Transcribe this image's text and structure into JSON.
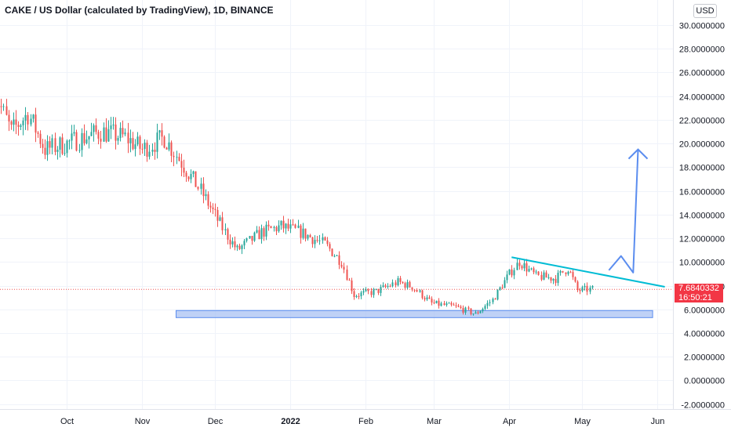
{
  "header": {
    "title": "CAKE / US Dollar (calculated by TradingView), 1D, BINANCE"
  },
  "currency_button": "USD",
  "last_price": {
    "value": "7.6840332",
    "countdown": "16:50:21"
  },
  "colors": {
    "up": "#26a69a",
    "down": "#ef5350",
    "trendline": "#00bcd4",
    "arrow": "#5b8def",
    "zone_fill": "#a9c2f3",
    "zone_border": "#5b8def",
    "price_tag": "#f23645"
  },
  "chart_data": {
    "type": "candlestick",
    "title": "CAKE / US Dollar (calculated by TradingView), 1D, BINANCE",
    "ylim": [
      -2.5,
      30.7
    ],
    "yticks": [
      "30.0000000",
      "28.0000000",
      "26.0000000",
      "24.0000000",
      "22.0000000",
      "20.0000000",
      "18.0000000",
      "16.0000000",
      "14.0000000",
      "12.0000000",
      "10.0000000",
      "8.0000000",
      "6.0000000",
      "4.0000000",
      "2.0000000",
      "0.0000000",
      "-2.0000000"
    ],
    "xticks": [
      "Oct",
      "Nov",
      "Dec",
      "2022",
      "Feb",
      "Mar",
      "Apr",
      "May",
      "Jun"
    ],
    "approximate_close_path": [
      {
        "date": "2021-09-01",
        "close": 24.5
      },
      {
        "date": "2021-09-08",
        "close": 21.0
      },
      {
        "date": "2021-09-15",
        "close": 22.5
      },
      {
        "date": "2021-09-22",
        "close": 19.5
      },
      {
        "date": "2021-10-01",
        "close": 20.0
      },
      {
        "date": "2021-10-15",
        "close": 21.0
      },
      {
        "date": "2021-10-25",
        "close": 20.5
      },
      {
        "date": "2021-11-01",
        "close": 19.5
      },
      {
        "date": "2021-11-10",
        "close": 20.5
      },
      {
        "date": "2021-11-15",
        "close": 19.0
      },
      {
        "date": "2021-11-25",
        "close": 16.0
      },
      {
        "date": "2021-12-05",
        "close": 12.5
      },
      {
        "date": "2021-12-10",
        "close": 11.0
      },
      {
        "date": "2021-12-20",
        "close": 12.5
      },
      {
        "date": "2021-12-28",
        "close": 13.0
      },
      {
        "date": "2022-01-05",
        "close": 12.5
      },
      {
        "date": "2022-01-15",
        "close": 11.5
      },
      {
        "date": "2022-01-22",
        "close": 10.0
      },
      {
        "date": "2022-01-27",
        "close": 7.2
      },
      {
        "date": "2022-02-05",
        "close": 7.5
      },
      {
        "date": "2022-02-14",
        "close": 8.3
      },
      {
        "date": "2022-02-20",
        "close": 7.9
      },
      {
        "date": "2022-02-28",
        "close": 6.5
      },
      {
        "date": "2022-03-10",
        "close": 6.2
      },
      {
        "date": "2022-03-18",
        "close": 5.6
      },
      {
        "date": "2022-03-25",
        "close": 6.8
      },
      {
        "date": "2022-04-01",
        "close": 9.0
      },
      {
        "date": "2022-04-05",
        "close": 10.0
      },
      {
        "date": "2022-04-12",
        "close": 8.8
      },
      {
        "date": "2022-04-20",
        "close": 8.6
      },
      {
        "date": "2022-04-25",
        "close": 9.5
      },
      {
        "date": "2022-04-29",
        "close": 7.6
      },
      {
        "date": "2022-05-05",
        "close": 7.7
      }
    ],
    "annotations": {
      "support_zone": {
        "y_from": 5.3,
        "y_to": 5.9,
        "x_from": "2021-11-15",
        "x_to": "2022-05-30"
      },
      "descending_trendline": {
        "from": {
          "date": "2022-04-02",
          "y": 10.4
        },
        "to": {
          "date": "2022-06-04",
          "y": 7.9
        }
      },
      "projection_arrow": [
        {
          "date": "2022-05-12",
          "y": 9.3
        },
        {
          "date": "2022-05-17",
          "y": 10.5
        },
        {
          "date": "2022-05-22",
          "y": 9.1
        },
        {
          "date": "2022-05-24",
          "y": 19.5
        }
      ]
    }
  }
}
